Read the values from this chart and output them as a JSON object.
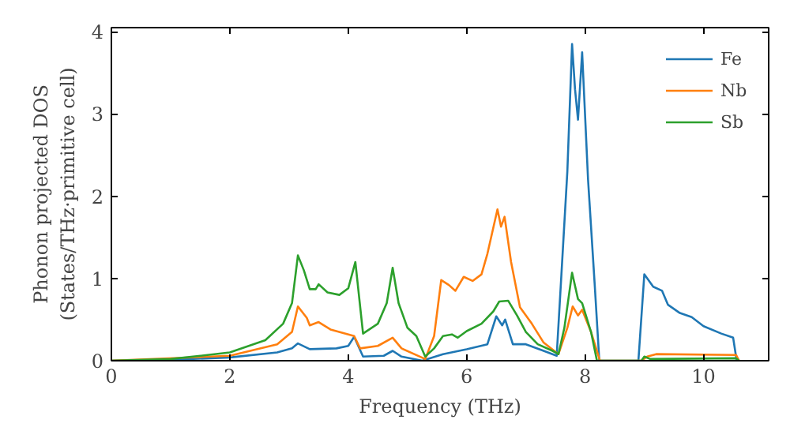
{
  "chart_data": {
    "type": "line",
    "xlabel": "Frequency (THz)",
    "ylabel": "Phonon projected DOS\n(States/THz·primitive cell)",
    "xlim": [
      0,
      11.1
    ],
    "ylim": [
      0,
      4.05
    ],
    "xticks": [
      0,
      2,
      4,
      6,
      8,
      10
    ],
    "yticks": [
      0,
      1,
      2,
      3,
      4
    ],
    "grid": false,
    "legend": "top right",
    "series": [
      {
        "name": "Fe",
        "color": "#1f77b4",
        "x": [
          0,
          1,
          2,
          2.8,
          3.05,
          3.15,
          3.35,
          3.8,
          4.0,
          4.1,
          4.25,
          4.6,
          4.75,
          4.9,
          5.25,
          5.6,
          6.0,
          6.35,
          6.5,
          6.6,
          6.65,
          6.78,
          7.0,
          7.3,
          7.52,
          7.6,
          7.7,
          7.78,
          7.83,
          7.88,
          7.95,
          8.05,
          8.16,
          8.24,
          8.9,
          9.0,
          9.15,
          9.3,
          9.4,
          9.6,
          9.8,
          10.0,
          10.3,
          10.5,
          10.56
        ],
        "values": [
          0,
          0.01,
          0.04,
          0.1,
          0.15,
          0.21,
          0.14,
          0.15,
          0.18,
          0.29,
          0.05,
          0.06,
          0.12,
          0.05,
          0.0,
          0.08,
          0.14,
          0.2,
          0.54,
          0.43,
          0.5,
          0.2,
          0.2,
          0.12,
          0.06,
          1.05,
          2.3,
          3.85,
          3.3,
          2.93,
          3.75,
          2.2,
          0.95,
          0,
          0,
          1.05,
          0.9,
          0.85,
          0.68,
          0.58,
          0.53,
          0.42,
          0.33,
          0.28,
          0
        ]
      },
      {
        "name": "Nb",
        "color": "#ff7f0e",
        "x": [
          0,
          2,
          2.8,
          3.05,
          3.15,
          3.3,
          3.35,
          3.5,
          3.7,
          4.1,
          4.2,
          4.5,
          4.75,
          4.9,
          5.3,
          5.45,
          5.57,
          5.7,
          5.81,
          5.95,
          6.1,
          6.25,
          6.35,
          6.52,
          6.58,
          6.64,
          6.75,
          6.9,
          7.1,
          7.3,
          7.55,
          7.7,
          7.79,
          7.88,
          7.95,
          8.1,
          8.25,
          8.95,
          9.05,
          9.2,
          10.55,
          10.6
        ],
        "values": [
          0,
          0.06,
          0.2,
          0.35,
          0.66,
          0.52,
          0.43,
          0.47,
          0.38,
          0.3,
          0.15,
          0.18,
          0.28,
          0.15,
          0.02,
          0.3,
          0.98,
          0.92,
          0.85,
          1.02,
          0.97,
          1.05,
          1.3,
          1.84,
          1.63,
          1.75,
          1.2,
          0.65,
          0.45,
          0.22,
          0.08,
          0.4,
          0.66,
          0.55,
          0.62,
          0.35,
          0,
          0,
          0.05,
          0.08,
          0.07,
          0
        ]
      },
      {
        "name": "Sb",
        "color": "#2ca02c",
        "x": [
          0,
          1,
          2,
          2.6,
          2.9,
          3.05,
          3.15,
          3.25,
          3.35,
          3.45,
          3.5,
          3.65,
          3.85,
          4.0,
          4.12,
          4.25,
          4.5,
          4.65,
          4.75,
          4.85,
          5.0,
          5.15,
          5.3,
          5.45,
          5.6,
          5.75,
          5.85,
          6.0,
          6.25,
          6.45,
          6.55,
          6.7,
          6.85,
          7.0,
          7.2,
          7.45,
          7.55,
          7.65,
          7.78,
          7.88,
          7.95,
          8.1,
          8.2,
          8.95,
          9.0,
          9.1,
          10.55,
          10.6
        ],
        "values": [
          0,
          0.02,
          0.1,
          0.25,
          0.45,
          0.7,
          1.28,
          1.1,
          0.87,
          0.87,
          0.93,
          0.83,
          0.8,
          0.88,
          1.2,
          0.33,
          0.45,
          0.7,
          1.13,
          0.7,
          0.4,
          0.3,
          0.05,
          0.15,
          0.3,
          0.32,
          0.28,
          0.36,
          0.45,
          0.6,
          0.72,
          0.73,
          0.55,
          0.35,
          0.2,
          0.12,
          0.08,
          0.4,
          1.07,
          0.75,
          0.7,
          0.35,
          0,
          0,
          0.05,
          0.02,
          0.03,
          0
        ]
      }
    ]
  }
}
